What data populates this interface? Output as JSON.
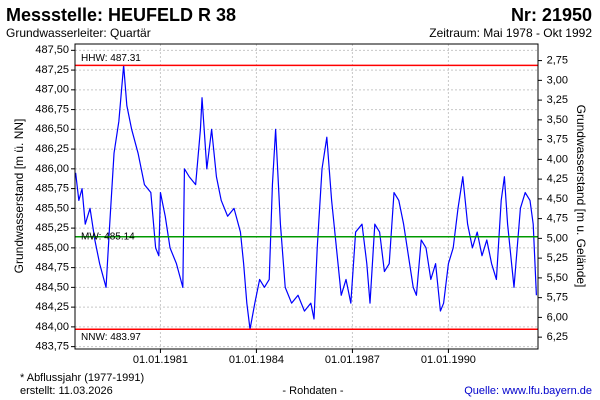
{
  "chart_data": {
    "type": "line",
    "title": "Messstelle: HEUFELD R 38",
    "number": "Nr: 21950",
    "subtitle": "Grundwasserleiter: Quartär",
    "period": "Zeitraum: Mai 1978 - Okt 1992",
    "y_label": "Grundwasserstand [m ü. NN]",
    "y2_label": "Grundwasserstand [m u. Gelände]",
    "footnote": "* Abflussjahr (1977-1991)",
    "created": "erstellt:  11.03.2026",
    "data_kind": "- Rohdaten -",
    "source": "Quelle: www.lfu.bayern.de",
    "grid": true,
    "xlim": [
      1978.33,
      1992.8
    ],
    "xticks": [
      {
        "value": 1981.0,
        "label": "01.01.1981"
      },
      {
        "value": 1984.0,
        "label": "01.01.1984"
      },
      {
        "value": 1987.0,
        "label": "01.01.1987"
      },
      {
        "value": 1990.0,
        "label": "01.01.1990"
      }
    ],
    "ylim": [
      483.72,
      487.58
    ],
    "yticks": [
      {
        "value": 483.75,
        "label": "483,75"
      },
      {
        "value": 484.0,
        "label": "484,00"
      },
      {
        "value": 484.25,
        "label": "484,25"
      },
      {
        "value": 484.5,
        "label": "484,50"
      },
      {
        "value": 484.75,
        "label": "484,75"
      },
      {
        "value": 485.0,
        "label": "485,00"
      },
      {
        "value": 485.25,
        "label": "485,25"
      },
      {
        "value": 485.5,
        "label": "485,50"
      },
      {
        "value": 485.75,
        "label": "485,75"
      },
      {
        "value": 486.0,
        "label": "486,00"
      },
      {
        "value": 486.25,
        "label": "486,25"
      },
      {
        "value": 486.5,
        "label": "486,50"
      },
      {
        "value": 486.75,
        "label": "486,75"
      },
      {
        "value": 487.0,
        "label": "487,00"
      },
      {
        "value": 487.25,
        "label": "487,25"
      },
      {
        "value": 487.5,
        "label": "487,50"
      }
    ],
    "y2lim": [
      2.54,
      6.4
    ],
    "y2_inverted": true,
    "y2ticks": [
      {
        "value": 2.75,
        "label": "2,75"
      },
      {
        "value": 3.0,
        "label": "3,00"
      },
      {
        "value": 3.25,
        "label": "3,25"
      },
      {
        "value": 3.5,
        "label": "3,50"
      },
      {
        "value": 3.75,
        "label": "3,75"
      },
      {
        "value": 4.0,
        "label": "4,00"
      },
      {
        "value": 4.25,
        "label": "4,25"
      },
      {
        "value": 4.5,
        "label": "4,50"
      },
      {
        "value": 4.75,
        "label": "4,75"
      },
      {
        "value": 5.0,
        "label": "5,00"
      },
      {
        "value": 5.25,
        "label": "5,25"
      },
      {
        "value": 5.5,
        "label": "5,50"
      },
      {
        "value": 5.75,
        "label": "5,75"
      },
      {
        "value": 6.0,
        "label": "6,00"
      },
      {
        "value": 6.25,
        "label": "6,25"
      }
    ],
    "hlines": [
      {
        "label": "HHW: 487.31",
        "value": 487.31,
        "color": "#ff0000"
      },
      {
        "label": "MW: 485.14",
        "value": 485.14,
        "color": "#009900"
      },
      {
        "label": "NNW: 483.97",
        "value": 483.97,
        "color": "#ff0000"
      }
    ],
    "x": [
      1978.35,
      1978.45,
      1978.55,
      1978.65,
      1978.8,
      1978.95,
      1979.1,
      1979.3,
      1979.4,
      1979.55,
      1979.7,
      1979.85,
      1979.95,
      1980.1,
      1980.3,
      1980.5,
      1980.7,
      1980.85,
      1980.95,
      1981.0,
      1981.15,
      1981.3,
      1981.5,
      1981.7,
      1981.75,
      1981.9,
      1982.1,
      1982.25,
      1982.3,
      1982.45,
      1982.6,
      1982.75,
      1982.9,
      1983.1,
      1983.3,
      1983.5,
      1983.6,
      1983.7,
      1983.8,
      1983.95,
      1984.1,
      1984.25,
      1984.4,
      1984.5,
      1984.6,
      1984.75,
      1984.9,
      1985.1,
      1985.3,
      1985.5,
      1985.7,
      1985.8,
      1985.9,
      1986.05,
      1986.2,
      1986.35,
      1986.5,
      1986.65,
      1986.8,
      1986.95,
      1987.1,
      1987.3,
      1987.45,
      1987.55,
      1987.7,
      1987.85,
      1988.0,
      1988.15,
      1988.3,
      1988.45,
      1988.6,
      1988.75,
      1988.9,
      1989.0,
      1989.15,
      1989.3,
      1989.45,
      1989.6,
      1989.75,
      1989.85,
      1990.0,
      1990.15,
      1990.3,
      1990.45,
      1990.6,
      1990.75,
      1990.9,
      1991.05,
      1991.2,
      1991.35,
      1991.5,
      1991.65,
      1991.75,
      1991.85,
      1991.95,
      1992.05,
      1992.15,
      1992.25,
      1992.4,
      1992.55,
      1992.65,
      1992.75
    ],
    "series": [
      {
        "color": "#0000ff",
        "values": [
          485.95,
          485.6,
          485.75,
          485.3,
          485.5,
          485.1,
          484.8,
          484.5,
          485.2,
          486.2,
          486.6,
          487.31,
          486.8,
          486.5,
          486.2,
          485.8,
          485.7,
          485.0,
          484.9,
          485.7,
          485.4,
          485.0,
          484.8,
          484.5,
          486.0,
          485.9,
          485.8,
          486.5,
          486.9,
          486.0,
          486.5,
          485.9,
          485.6,
          485.4,
          485.5,
          485.2,
          484.8,
          484.3,
          483.97,
          484.3,
          484.6,
          484.5,
          484.6,
          485.8,
          486.5,
          485.3,
          484.5,
          484.3,
          484.4,
          484.2,
          484.3,
          484.1,
          485.0,
          486.0,
          486.4,
          485.6,
          485.0,
          484.4,
          484.6,
          484.3,
          485.2,
          485.3,
          484.8,
          484.3,
          485.3,
          485.2,
          484.7,
          484.8,
          485.7,
          485.6,
          485.3,
          484.9,
          484.5,
          484.4,
          485.1,
          485.0,
          484.6,
          484.8,
          484.2,
          484.3,
          484.8,
          485.0,
          485.5,
          485.9,
          485.3,
          485.0,
          485.2,
          484.9,
          485.1,
          484.8,
          484.6,
          485.6,
          485.9,
          485.3,
          484.9,
          484.5,
          485.0,
          485.5,
          485.7,
          485.6,
          485.3,
          484.4
        ]
      }
    ]
  }
}
